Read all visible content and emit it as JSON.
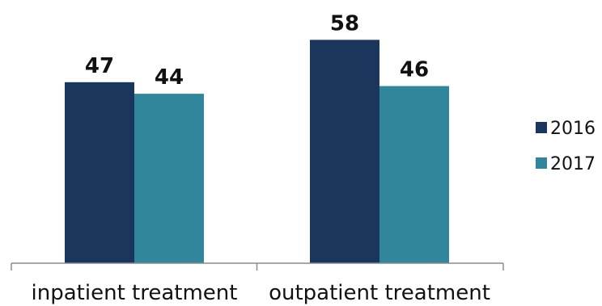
{
  "chart_data": {
    "type": "bar",
    "categories": [
      "inpatient treatment",
      "outpatient treatment"
    ],
    "series": [
      {
        "name": "2016",
        "values": [
          47,
          58
        ],
        "color": "#1a365d"
      },
      {
        "name": "2017",
        "values": [
          44,
          46
        ],
        "color": "#31869b"
      }
    ],
    "data_labels": true,
    "legend": "right",
    "grid": false,
    "ylim": [
      0,
      65
    ]
  }
}
